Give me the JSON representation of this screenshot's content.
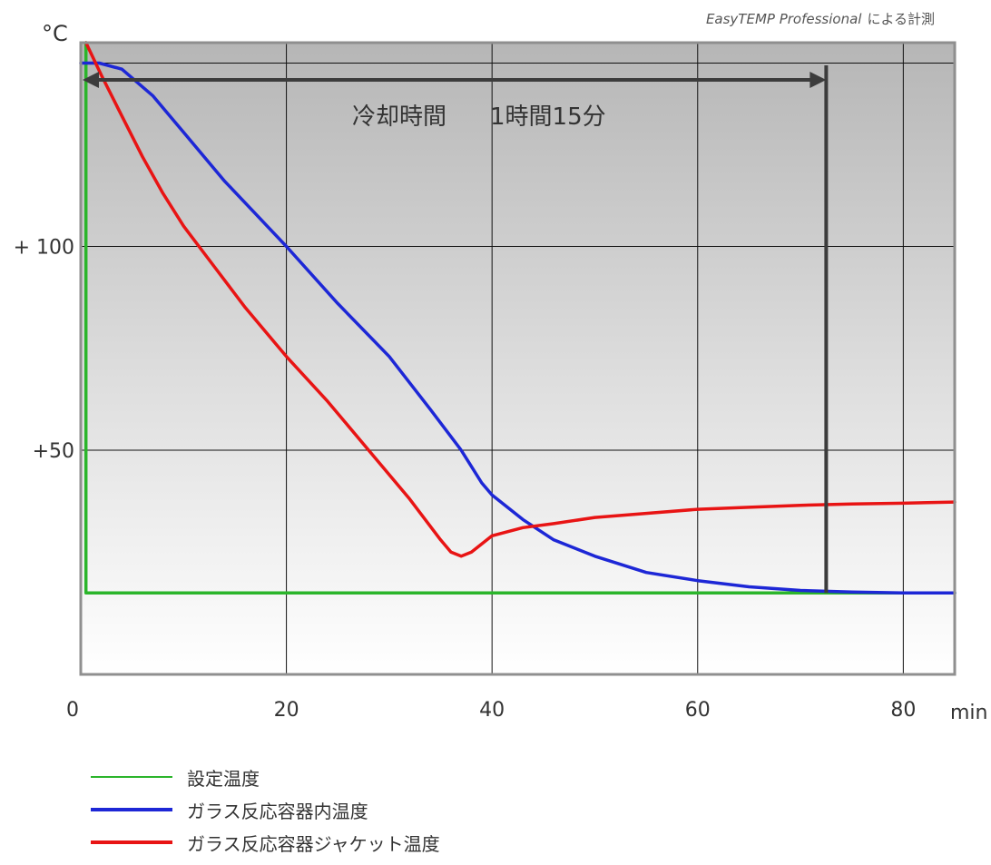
{
  "credit": {
    "italic": "EasyTEMP Professional",
    "suffix": "による計測"
  },
  "chart_data": {
    "type": "line",
    "y_unit_label": "°C",
    "x_unit_label": "min",
    "x_ticks": [
      0,
      20,
      40,
      60,
      80
    ],
    "y_ticks": [
      {
        "value": 100,
        "label": "+ 100"
      },
      {
        "value": 50,
        "label": "+50"
      }
    ],
    "xlim": [
      0,
      85
    ],
    "ylim": [
      -5,
      150
    ],
    "grid": true,
    "legend_position": "bottom",
    "annotation": {
      "text_a": "冷却時間",
      "text_b": "1時間15分",
      "start_x": 0,
      "end_x": 72.5
    },
    "series": [
      {
        "name": "設定温度",
        "color": "#2bb52b",
        "width": 3.5,
        "points": [
          [
            0.5,
            150
          ],
          [
            0.5,
            15
          ],
          [
            85,
            15
          ]
        ]
      },
      {
        "name": "ガラス反応容器内温度",
        "color": "#1d27d6",
        "width": 3.5,
        "points": [
          [
            0,
            145
          ],
          [
            1.8,
            145
          ],
          [
            4,
            143.5
          ],
          [
            7,
            137
          ],
          [
            10,
            128
          ],
          [
            14,
            116
          ],
          [
            17,
            108
          ],
          [
            20,
            100
          ],
          [
            25,
            86
          ],
          [
            30,
            73
          ],
          [
            34,
            60
          ],
          [
            37,
            50
          ],
          [
            39,
            42
          ],
          [
            40,
            39
          ],
          [
            43,
            33
          ],
          [
            46,
            28
          ],
          [
            50,
            24
          ],
          [
            55,
            20
          ],
          [
            60,
            18
          ],
          [
            65,
            16.5
          ],
          [
            70,
            15.6
          ],
          [
            75,
            15.2
          ],
          [
            80,
            15
          ],
          [
            85,
            15
          ]
        ]
      },
      {
        "name": "ガラス反応容器ジャケット温度",
        "color": "#e81414",
        "width": 3.5,
        "points": [
          [
            0.5,
            150
          ],
          [
            2,
            142
          ],
          [
            4,
            132
          ],
          [
            6,
            122
          ],
          [
            8,
            113
          ],
          [
            10,
            105
          ],
          [
            13,
            95
          ],
          [
            16,
            85
          ],
          [
            20,
            73
          ],
          [
            24,
            62
          ],
          [
            28,
            50
          ],
          [
            32,
            38
          ],
          [
            35,
            28
          ],
          [
            36,
            25
          ],
          [
            37,
            24
          ],
          [
            38,
            25
          ],
          [
            40,
            29
          ],
          [
            43,
            31
          ],
          [
            46,
            32
          ],
          [
            50,
            33.5
          ],
          [
            55,
            34.5
          ],
          [
            60,
            35.5
          ],
          [
            65,
            36
          ],
          [
            70,
            36.5
          ],
          [
            75,
            36.8
          ],
          [
            80,
            37
          ],
          [
            85,
            37.3
          ]
        ]
      }
    ]
  }
}
